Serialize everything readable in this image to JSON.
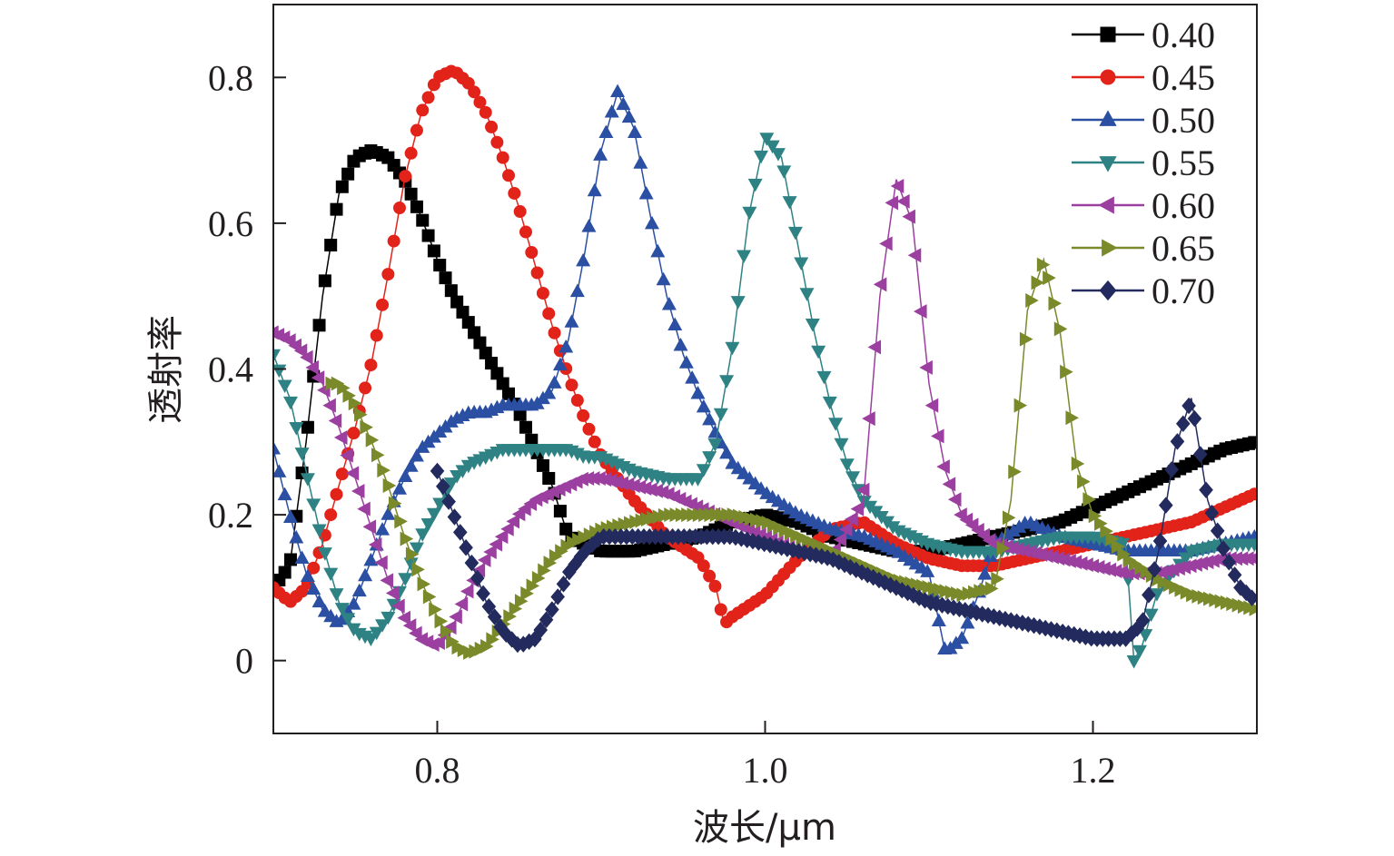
{
  "chart_data": {
    "type": "line",
    "title": "",
    "xlabel": "波长/μm",
    "ylabel": "透射率",
    "xlim": [
      0.7,
      1.3
    ],
    "ylim": [
      -0.1,
      0.9
    ],
    "xticks": [
      0.8,
      1.0,
      1.2
    ],
    "xtick_labels": [
      "0.8",
      "1.0",
      "1.2"
    ],
    "yticks": [
      0,
      0.2,
      0.4,
      0.6,
      0.8
    ],
    "ytick_labels": [
      "0",
      "0.2",
      "0.4",
      "0.6",
      "0.8"
    ],
    "grid": false,
    "legend_position": "top-right",
    "series": [
      {
        "name": "0.40",
        "color": "#000000",
        "marker": "square",
        "x": [
          0.7,
          0.71,
          0.72,
          0.73,
          0.74,
          0.75,
          0.76,
          0.77,
          0.78,
          0.79,
          0.8,
          0.81,
          0.82,
          0.83,
          0.84,
          0.85,
          0.86,
          0.87,
          0.88,
          0.89,
          0.9,
          0.92,
          0.94,
          0.96,
          0.98,
          1.0,
          1.02,
          1.04,
          1.06,
          1.08,
          1.1,
          1.12,
          1.14,
          1.16,
          1.18,
          1.2,
          1.22,
          1.24,
          1.26,
          1.28,
          1.3
        ],
        "y": [
          0.1,
          0.13,
          0.3,
          0.5,
          0.64,
          0.69,
          0.7,
          0.69,
          0.66,
          0.61,
          0.55,
          0.5,
          0.46,
          0.42,
          0.38,
          0.34,
          0.29,
          0.24,
          0.17,
          0.16,
          0.15,
          0.15,
          0.16,
          0.17,
          0.19,
          0.2,
          0.19,
          0.17,
          0.16,
          0.15,
          0.15,
          0.16,
          0.17,
          0.18,
          0.19,
          0.21,
          0.23,
          0.25,
          0.27,
          0.29,
          0.3
        ]
      },
      {
        "name": "0.45",
        "color": "#e2231a",
        "marker": "circle",
        "x": [
          0.7,
          0.71,
          0.72,
          0.73,
          0.74,
          0.75,
          0.76,
          0.77,
          0.78,
          0.79,
          0.8,
          0.81,
          0.82,
          0.83,
          0.84,
          0.85,
          0.86,
          0.87,
          0.88,
          0.89,
          0.9,
          0.92,
          0.94,
          0.96,
          0.97,
          0.975,
          0.98,
          1.0,
          1.02,
          1.04,
          1.06,
          1.08,
          1.1,
          1.12,
          1.14,
          1.16,
          1.18,
          1.2,
          1.22,
          1.24,
          1.26,
          1.28,
          1.3
        ],
        "y": [
          0.1,
          0.08,
          0.1,
          0.16,
          0.24,
          0.32,
          0.41,
          0.53,
          0.66,
          0.75,
          0.8,
          0.81,
          0.79,
          0.75,
          0.69,
          0.62,
          0.54,
          0.46,
          0.39,
          0.33,
          0.28,
          0.22,
          0.17,
          0.14,
          0.1,
          0.05,
          0.06,
          0.09,
          0.14,
          0.18,
          0.19,
          0.16,
          0.14,
          0.13,
          0.13,
          0.14,
          0.15,
          0.16,
          0.17,
          0.18,
          0.19,
          0.21,
          0.23
        ]
      },
      {
        "name": "0.50",
        "color": "#2b4fa2",
        "marker": "triangle-up",
        "x": [
          0.7,
          0.71,
          0.72,
          0.73,
          0.74,
          0.75,
          0.76,
          0.77,
          0.78,
          0.79,
          0.8,
          0.81,
          0.82,
          0.83,
          0.84,
          0.85,
          0.86,
          0.87,
          0.88,
          0.89,
          0.9,
          0.91,
          0.92,
          0.93,
          0.94,
          0.95,
          0.96,
          0.97,
          0.98,
          0.99,
          1.0,
          1.02,
          1.04,
          1.06,
          1.08,
          1.1,
          1.11,
          1.12,
          1.13,
          1.14,
          1.16,
          1.18,
          1.2,
          1.22,
          1.24,
          1.26,
          1.28,
          1.3
        ],
        "y": [
          0.29,
          0.2,
          0.12,
          0.07,
          0.05,
          0.08,
          0.14,
          0.2,
          0.25,
          0.29,
          0.31,
          0.33,
          0.34,
          0.34,
          0.35,
          0.35,
          0.35,
          0.37,
          0.44,
          0.56,
          0.7,
          0.78,
          0.73,
          0.61,
          0.5,
          0.42,
          0.36,
          0.31,
          0.27,
          0.25,
          0.23,
          0.2,
          0.18,
          0.17,
          0.15,
          0.12,
          0.01,
          0.03,
          0.09,
          0.16,
          0.19,
          0.17,
          0.16,
          0.15,
          0.15,
          0.15,
          0.16,
          0.17
        ]
      },
      {
        "name": "0.55",
        "color": "#2e8284",
        "marker": "triangle-down",
        "x": [
          0.7,
          0.71,
          0.72,
          0.73,
          0.74,
          0.75,
          0.76,
          0.77,
          0.78,
          0.79,
          0.8,
          0.81,
          0.82,
          0.83,
          0.84,
          0.85,
          0.86,
          0.87,
          0.88,
          0.89,
          0.9,
          0.92,
          0.94,
          0.96,
          0.97,
          0.98,
          0.99,
          1.0,
          1.01,
          1.02,
          1.03,
          1.04,
          1.05,
          1.06,
          1.08,
          1.1,
          1.12,
          1.14,
          1.16,
          1.18,
          1.2,
          1.22,
          1.225,
          1.23,
          1.24,
          1.26,
          1.28,
          1.3
        ],
        "y": [
          0.42,
          0.36,
          0.26,
          0.16,
          0.08,
          0.04,
          0.03,
          0.06,
          0.11,
          0.17,
          0.21,
          0.25,
          0.27,
          0.28,
          0.29,
          0.29,
          0.29,
          0.29,
          0.29,
          0.28,
          0.28,
          0.26,
          0.25,
          0.25,
          0.3,
          0.43,
          0.61,
          0.72,
          0.69,
          0.57,
          0.45,
          0.35,
          0.27,
          0.22,
          0.18,
          0.16,
          0.15,
          0.15,
          0.16,
          0.17,
          0.17,
          0.16,
          0.0,
          0.02,
          0.1,
          0.15,
          0.16,
          0.16
        ]
      },
      {
        "name": "0.60",
        "color": "#9b3fa0",
        "marker": "triangle-left",
        "x": [
          0.7,
          0.71,
          0.72,
          0.73,
          0.74,
          0.75,
          0.76,
          0.77,
          0.78,
          0.79,
          0.8,
          0.81,
          0.82,
          0.83,
          0.84,
          0.85,
          0.86,
          0.87,
          0.88,
          0.89,
          0.9,
          0.92,
          0.94,
          0.96,
          0.98,
          1.0,
          1.02,
          1.04,
          1.06,
          1.07,
          1.08,
          1.09,
          1.1,
          1.11,
          1.12,
          1.14,
          1.16,
          1.18,
          1.2,
          1.22,
          1.24,
          1.26,
          1.28,
          1.3
        ],
        "y": [
          0.45,
          0.44,
          0.42,
          0.38,
          0.32,
          0.25,
          0.18,
          0.11,
          0.06,
          0.03,
          0.02,
          0.05,
          0.1,
          0.14,
          0.17,
          0.2,
          0.22,
          0.23,
          0.24,
          0.25,
          0.25,
          0.24,
          0.23,
          0.21,
          0.19,
          0.17,
          0.15,
          0.14,
          0.22,
          0.5,
          0.66,
          0.6,
          0.38,
          0.26,
          0.2,
          0.16,
          0.15,
          0.14,
          0.13,
          0.12,
          0.12,
          0.13,
          0.14,
          0.14
        ]
      },
      {
        "name": "0.65",
        "color": "#7a8a2a",
        "marker": "triangle-right",
        "x": [
          0.735,
          0.74,
          0.75,
          0.76,
          0.77,
          0.78,
          0.79,
          0.8,
          0.81,
          0.82,
          0.83,
          0.84,
          0.85,
          0.86,
          0.87,
          0.88,
          0.89,
          0.9,
          0.92,
          0.94,
          0.96,
          0.98,
          1.0,
          1.02,
          1.04,
          1.06,
          1.08,
          1.1,
          1.12,
          1.14,
          1.15,
          1.16,
          1.17,
          1.18,
          1.19,
          1.2,
          1.22,
          1.24,
          1.26,
          1.28,
          1.3
        ],
        "y": [
          0.38,
          0.38,
          0.35,
          0.3,
          0.24,
          0.17,
          0.11,
          0.06,
          0.02,
          0.01,
          0.02,
          0.05,
          0.08,
          0.11,
          0.14,
          0.16,
          0.17,
          0.18,
          0.19,
          0.2,
          0.2,
          0.2,
          0.19,
          0.17,
          0.15,
          0.13,
          0.11,
          0.1,
          0.09,
          0.1,
          0.22,
          0.48,
          0.55,
          0.45,
          0.27,
          0.2,
          0.14,
          0.11,
          0.09,
          0.08,
          0.07
        ]
      },
      {
        "name": "0.70",
        "color": "#232b5e",
        "marker": "diamond",
        "x": [
          0.8,
          0.81,
          0.82,
          0.83,
          0.84,
          0.85,
          0.86,
          0.87,
          0.88,
          0.89,
          0.9,
          0.92,
          0.94,
          0.96,
          0.98,
          1.0,
          1.02,
          1.04,
          1.06,
          1.08,
          1.1,
          1.12,
          1.14,
          1.16,
          1.18,
          1.2,
          1.22,
          1.23,
          1.24,
          1.25,
          1.26,
          1.27,
          1.28,
          1.29,
          1.3
        ],
        "y": [
          0.26,
          0.2,
          0.14,
          0.08,
          0.04,
          0.02,
          0.03,
          0.07,
          0.12,
          0.15,
          0.17,
          0.17,
          0.17,
          0.17,
          0.17,
          0.16,
          0.15,
          0.14,
          0.12,
          0.1,
          0.08,
          0.07,
          0.06,
          0.05,
          0.04,
          0.03,
          0.03,
          0.05,
          0.15,
          0.29,
          0.36,
          0.22,
          0.15,
          0.1,
          0.08
        ]
      }
    ]
  }
}
